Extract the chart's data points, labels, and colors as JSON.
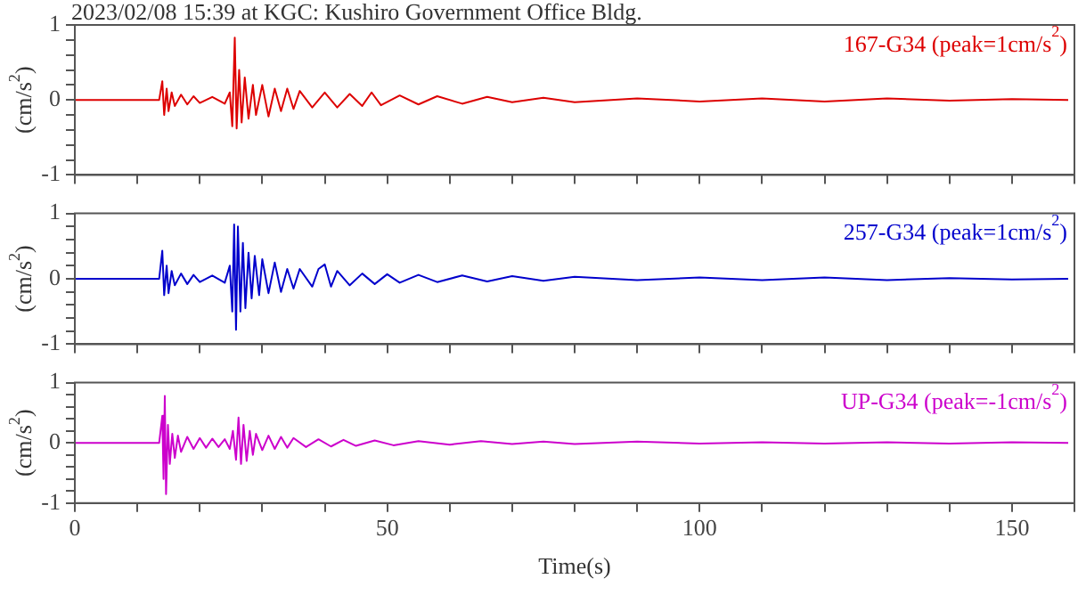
{
  "chart_data": [
    {
      "type": "line",
      "title": "2023/02/08 15:39 at KGC: Kushiro Government Office Bldg.",
      "ylabel": "(cm/s$^{2}$)",
      "xlim": [
        0,
        160
      ],
      "xticks": [
        {
          "value": 0,
          "label": null
        },
        {
          "value": 10,
          "label": null
        },
        {
          "value": 20,
          "label": null
        },
        {
          "value": 30,
          "label": null
        },
        {
          "value": 40,
          "label": null
        },
        {
          "value": 50,
          "label": null
        },
        {
          "value": 60,
          "label": null
        },
        {
          "value": 70,
          "label": null
        },
        {
          "value": 80,
          "label": null
        },
        {
          "value": 90,
          "label": null
        },
        {
          "value": 100,
          "label": null
        },
        {
          "value": 110,
          "label": null
        },
        {
          "value": 120,
          "label": null
        },
        {
          "value": 130,
          "label": null
        },
        {
          "value": 140,
          "label": null
        },
        {
          "value": 150,
          "label": null
        },
        {
          "value": 160,
          "label": null
        }
      ],
      "ylim": [
        -1,
        1
      ],
      "yticks": [
        -1,
        {
          "value": -0.8,
          "label": null
        },
        {
          "value": -0.6,
          "label": null
        },
        {
          "value": -0.4,
          "label": null
        },
        {
          "value": -0.2,
          "label": null
        },
        0,
        {
          "value": 0.2,
          "label": null
        },
        {
          "value": 0.4,
          "label": null
        },
        {
          "value": 0.6,
          "label": null
        },
        {
          "value": 0.8,
          "label": null
        },
        1
      ],
      "tick_labels": "y",
      "grid": false,
      "legend": false,
      "marker": "none",
      "series": [
        {
          "name": "167-G34 (peak=1cm/s$^{2}$)",
          "color": "#dd0000",
          "x": [
            0,
            5,
            10,
            13.5,
            14,
            14.3,
            14.7,
            15,
            15.5,
            16,
            17,
            18,
            19,
            20,
            22,
            24,
            24.8,
            25.2,
            25.6,
            25.9,
            26.3,
            26.7,
            27.2,
            27.8,
            28.5,
            29,
            30,
            31,
            32,
            33,
            34,
            35,
            36,
            38,
            40,
            42,
            44,
            46,
            47.5,
            49,
            52,
            55,
            58,
            62,
            66,
            70,
            75,
            80,
            90,
            100,
            110,
            120,
            130,
            140,
            150,
            159
          ],
          "values": [
            0,
            0,
            0,
            0,
            0.25,
            -0.2,
            0.15,
            -0.15,
            0.1,
            -0.08,
            0.07,
            -0.06,
            0.05,
            -0.04,
            0.04,
            -0.05,
            0.1,
            -0.35,
            0.83,
            -0.38,
            0.4,
            -0.3,
            0.3,
            -0.25,
            0.2,
            -0.2,
            0.2,
            -0.22,
            0.15,
            -0.15,
            0.15,
            -0.12,
            0.12,
            -0.1,
            0.1,
            -0.1,
            0.08,
            -0.08,
            0.1,
            -0.07,
            0.06,
            -0.06,
            0.05,
            -0.05,
            0.04,
            -0.03,
            0.03,
            -0.03,
            0.02,
            -0.02,
            0.02,
            -0.02,
            0.02,
            -0.01,
            0.01,
            0
          ]
        }
      ]
    },
    {
      "type": "line",
      "ylabel": "(cm/s$^{2}$)",
      "xlim": [
        0,
        160
      ],
      "xticks": [
        {
          "value": 0,
          "label": null
        },
        {
          "value": 10,
          "label": null
        },
        {
          "value": 20,
          "label": null
        },
        {
          "value": 30,
          "label": null
        },
        {
          "value": 40,
          "label": null
        },
        {
          "value": 50,
          "label": null
        },
        {
          "value": 60,
          "label": null
        },
        {
          "value": 70,
          "label": null
        },
        {
          "value": 80,
          "label": null
        },
        {
          "value": 90,
          "label": null
        },
        {
          "value": 100,
          "label": null
        },
        {
          "value": 110,
          "label": null
        },
        {
          "value": 120,
          "label": null
        },
        {
          "value": 130,
          "label": null
        },
        {
          "value": 140,
          "label": null
        },
        {
          "value": 150,
          "label": null
        },
        {
          "value": 160,
          "label": null
        }
      ],
      "ylim": [
        -1,
        1
      ],
      "yticks": [
        -1,
        {
          "value": -0.8,
          "label": null
        },
        {
          "value": -0.6,
          "label": null
        },
        {
          "value": -0.4,
          "label": null
        },
        {
          "value": -0.2,
          "label": null
        },
        0,
        {
          "value": 0.2,
          "label": null
        },
        {
          "value": 0.4,
          "label": null
        },
        {
          "value": 0.6,
          "label": null
        },
        {
          "value": 0.8,
          "label": null
        },
        1
      ],
      "tick_labels": "y",
      "grid": false,
      "legend": false,
      "marker": "none",
      "series": [
        {
          "name": "257-G34 (peak=1cm/s$^{2}$)",
          "color": "#0000cc",
          "x": [
            0,
            5,
            10,
            13.5,
            14,
            14.3,
            14.7,
            15,
            15.5,
            16,
            17,
            18,
            19,
            20,
            22,
            24,
            24.8,
            25.2,
            25.5,
            25.8,
            26.1,
            26.5,
            26.9,
            27.3,
            27.8,
            28.3,
            28.8,
            29.5,
            30,
            31,
            32,
            33,
            34,
            35,
            36,
            38,
            39,
            40,
            41,
            42,
            44,
            46,
            48,
            50,
            52,
            55,
            58,
            62,
            66,
            70,
            75,
            80,
            90,
            100,
            110,
            120,
            130,
            140,
            150,
            159
          ],
          "values": [
            0,
            0,
            0,
            0,
            0.43,
            -0.25,
            0.2,
            -0.22,
            0.12,
            -0.1,
            0.08,
            -0.08,
            0.06,
            -0.05,
            0.05,
            -0.06,
            0.2,
            -0.5,
            0.83,
            -0.78,
            0.8,
            -0.5,
            0.55,
            -0.45,
            0.4,
            -0.3,
            0.35,
            -0.25,
            0.3,
            -0.22,
            0.25,
            -0.2,
            0.15,
            -0.15,
            0.15,
            -0.12,
            0.15,
            0.22,
            -0.12,
            0.12,
            -0.1,
            0.08,
            -0.08,
            0.07,
            -0.06,
            0.06,
            -0.05,
            0.05,
            -0.04,
            0.04,
            -0.03,
            0.03,
            -0.02,
            0.02,
            -0.02,
            0.02,
            -0.02,
            0.01,
            -0.01,
            0
          ]
        }
      ]
    },
    {
      "type": "line",
      "ylabel": "(cm/s$^{2}$)",
      "xlabel": "Time(s)",
      "xlim": [
        0,
        160
      ],
      "xticks": [
        0,
        {
          "value": 10,
          "label": null
        },
        {
          "value": 20,
          "label": null
        },
        {
          "value": 30,
          "label": null
        },
        {
          "value": 40,
          "label": null
        },
        50,
        {
          "value": 60,
          "label": null
        },
        {
          "value": 70,
          "label": null
        },
        {
          "value": 80,
          "label": null
        },
        {
          "value": 90,
          "label": null
        },
        100,
        {
          "value": 110,
          "label": null
        },
        {
          "value": 120,
          "label": null
        },
        {
          "value": 130,
          "label": null
        },
        {
          "value": 140,
          "label": null
        },
        150,
        {
          "value": 160,
          "label": null
        }
      ],
      "ylim": [
        -1,
        1
      ],
      "yticks": [
        -1,
        {
          "value": -0.8,
          "label": null
        },
        {
          "value": -0.6,
          "label": null
        },
        {
          "value": -0.4,
          "label": null
        },
        {
          "value": -0.2,
          "label": null
        },
        0,
        {
          "value": 0.2,
          "label": null
        },
        {
          "value": 0.4,
          "label": null
        },
        {
          "value": 0.6,
          "label": null
        },
        {
          "value": 0.8,
          "label": null
        },
        1
      ],
      "grid": false,
      "legend": false,
      "marker": "none",
      "series": [
        {
          "name": "UP-G34 (peak=-1cm/s$^{2}$)",
          "color": "#cc00cc",
          "x": [
            0,
            5,
            10,
            13.5,
            14,
            14.2,
            14.4,
            14.6,
            14.9,
            15.2,
            15.6,
            16,
            16.5,
            17,
            18,
            19,
            20,
            21,
            22,
            23,
            24,
            24.8,
            25.3,
            25.8,
            26.2,
            26.6,
            27,
            27.5,
            28,
            28.5,
            29,
            30,
            31,
            32,
            33,
            34,
            35,
            37,
            39,
            41,
            43,
            45,
            48,
            51,
            55,
            60,
            65,
            70,
            75,
            80,
            90,
            100,
            110,
            120,
            130,
            140,
            150,
            159
          ],
          "values": [
            0,
            0,
            0,
            0,
            0.45,
            -0.6,
            0.78,
            -0.85,
            0.3,
            -0.35,
            0.15,
            -0.25,
            0.12,
            -0.15,
            0.1,
            -0.1,
            0.08,
            -0.08,
            0.07,
            -0.07,
            0.06,
            -0.1,
            0.2,
            -0.28,
            0.42,
            -0.35,
            0.3,
            -0.3,
            0.2,
            -0.2,
            0.15,
            -0.12,
            0.12,
            -0.1,
            0.1,
            -0.08,
            0.08,
            -0.07,
            0.06,
            -0.06,
            0.05,
            -0.05,
            0.04,
            -0.04,
            0.03,
            -0.03,
            0.03,
            -0.02,
            0.02,
            -0.02,
            0.02,
            -0.01,
            0.01,
            -0.01,
            0.01,
            -0.01,
            0.01,
            0
          ]
        }
      ]
    }
  ]
}
